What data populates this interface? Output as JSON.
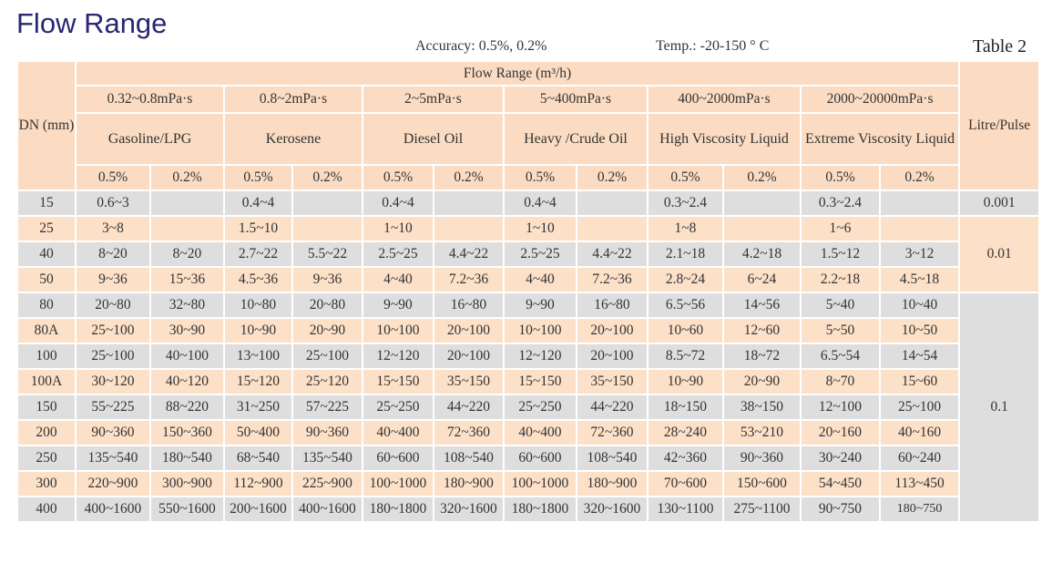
{
  "title": "Flow Range",
  "accuracy": "Accuracy: 0.5%, 0.2%",
  "temp": "Temp.: -20-150 ° C",
  "table_no": "Table 2",
  "header": {
    "dn": "DN (mm)",
    "flow_range": "Flow Range (m³/h)",
    "litre_pulse": "Litre/Pulse",
    "groups": [
      {
        "viscosity": "0.32~0.8mPa·s",
        "fluid": "Gasoline/LPG"
      },
      {
        "viscosity": "0.8~2mPa·s",
        "fluid": "Kerosene"
      },
      {
        "viscosity": "2~5mPa·s",
        "fluid": "Diesel  Oil"
      },
      {
        "viscosity": "5~400mPa·s",
        "fluid": "Heavy /Crude Oil"
      },
      {
        "viscosity": "400~2000mPa·s",
        "fluid": "High Viscosity Liquid"
      },
      {
        "viscosity": "2000~20000mPa·s",
        "fluid": "Extreme Viscosity Liquid"
      }
    ],
    "accuracies": [
      "0.5%",
      "0.2%"
    ]
  },
  "colors": {
    "header": "#fbdcc3",
    "row_grey": "#dedede",
    "row_peach": "#fce0c8",
    "title": "#2b2670"
  },
  "rows": [
    {
      "dn": "15",
      "v": [
        "0.6~3",
        "",
        "0.4~4",
        "",
        "0.4~4",
        "",
        "0.4~4",
        "",
        "0.3~2.4",
        "",
        "0.3~2.4",
        ""
      ]
    },
    {
      "dn": "25",
      "v": [
        "3~8",
        "",
        "1.5~10",
        "",
        "1~10",
        "",
        "1~10",
        "",
        "1~8",
        "",
        "1~6",
        ""
      ]
    },
    {
      "dn": "40",
      "v": [
        "8~20",
        "8~20",
        "2.7~22",
        "5.5~22",
        "2.5~25",
        "4.4~22",
        "2.5~25",
        "4.4~22",
        "2.1~18",
        "4.2~18",
        "1.5~12",
        "3~12"
      ]
    },
    {
      "dn": "50",
      "v": [
        "9~36",
        "15~36",
        "4.5~36",
        "9~36",
        "4~40",
        "7.2~36",
        "4~40",
        "7.2~36",
        "2.8~24",
        "6~24",
        "2.2~18",
        "4.5~18"
      ]
    },
    {
      "dn": "80",
      "v": [
        "20~80",
        "32~80",
        "10~80",
        "20~80",
        "9~90",
        "16~80",
        "9~90",
        "16~80",
        "6.5~56",
        "14~56",
        "5~40",
        "10~40"
      ]
    },
    {
      "dn": "80A",
      "v": [
        "25~100",
        "30~90",
        "10~90",
        "20~90",
        "10~100",
        "20~100",
        "10~100",
        "20~100",
        "10~60",
        "12~60",
        "5~50",
        "10~50"
      ]
    },
    {
      "dn": "100",
      "v": [
        "25~100",
        "40~100",
        "13~100",
        "25~100",
        "12~120",
        "20~100",
        "12~120",
        "20~100",
        "8.5~72",
        "18~72",
        "6.5~54",
        "14~54"
      ]
    },
    {
      "dn": "100A",
      "v": [
        "30~120",
        "40~120",
        "15~120",
        "25~120",
        "15~150",
        "35~150",
        "15~150",
        "35~150",
        "10~90",
        "20~90",
        "8~70",
        "15~60"
      ]
    },
    {
      "dn": "150",
      "v": [
        "55~225",
        "88~220",
        "31~250",
        "57~225",
        "25~250",
        "44~220",
        "25~250",
        "44~220",
        "18~150",
        "38~150",
        "12~100",
        "25~100"
      ]
    },
    {
      "dn": "200",
      "v": [
        "90~360",
        "150~360",
        "50~400",
        "90~360",
        "40~400",
        "72~360",
        "40~400",
        "72~360",
        "28~240",
        "53~210",
        "20~160",
        "40~160"
      ]
    },
    {
      "dn": "250",
      "v": [
        "135~540",
        "180~540",
        "68~540",
        "135~540",
        "60~600",
        "108~540",
        "60~600",
        "108~540",
        "42~360",
        "90~360",
        "30~240",
        "60~240"
      ]
    },
    {
      "dn": "300",
      "v": [
        "220~900",
        "300~900",
        "112~900",
        "225~900",
        "100~1000",
        "180~900",
        "100~1000",
        "180~900",
        "70~600",
        "150~600",
        "54~450",
        "113~450"
      ]
    },
    {
      "dn": "400",
      "v": [
        "400~1600",
        "550~1600",
        "200~1600",
        "400~1600",
        "180~1800",
        "320~1600",
        "180~1800",
        "320~1600",
        "130~1100",
        "275~1100",
        "90~750",
        "180~750"
      ]
    }
  ],
  "litre_pulse": [
    {
      "value": "0.001",
      "rows": 1
    },
    {
      "value": "0.01",
      "rows": 3
    },
    {
      "value": "0.1",
      "rows": 9
    }
  ]
}
